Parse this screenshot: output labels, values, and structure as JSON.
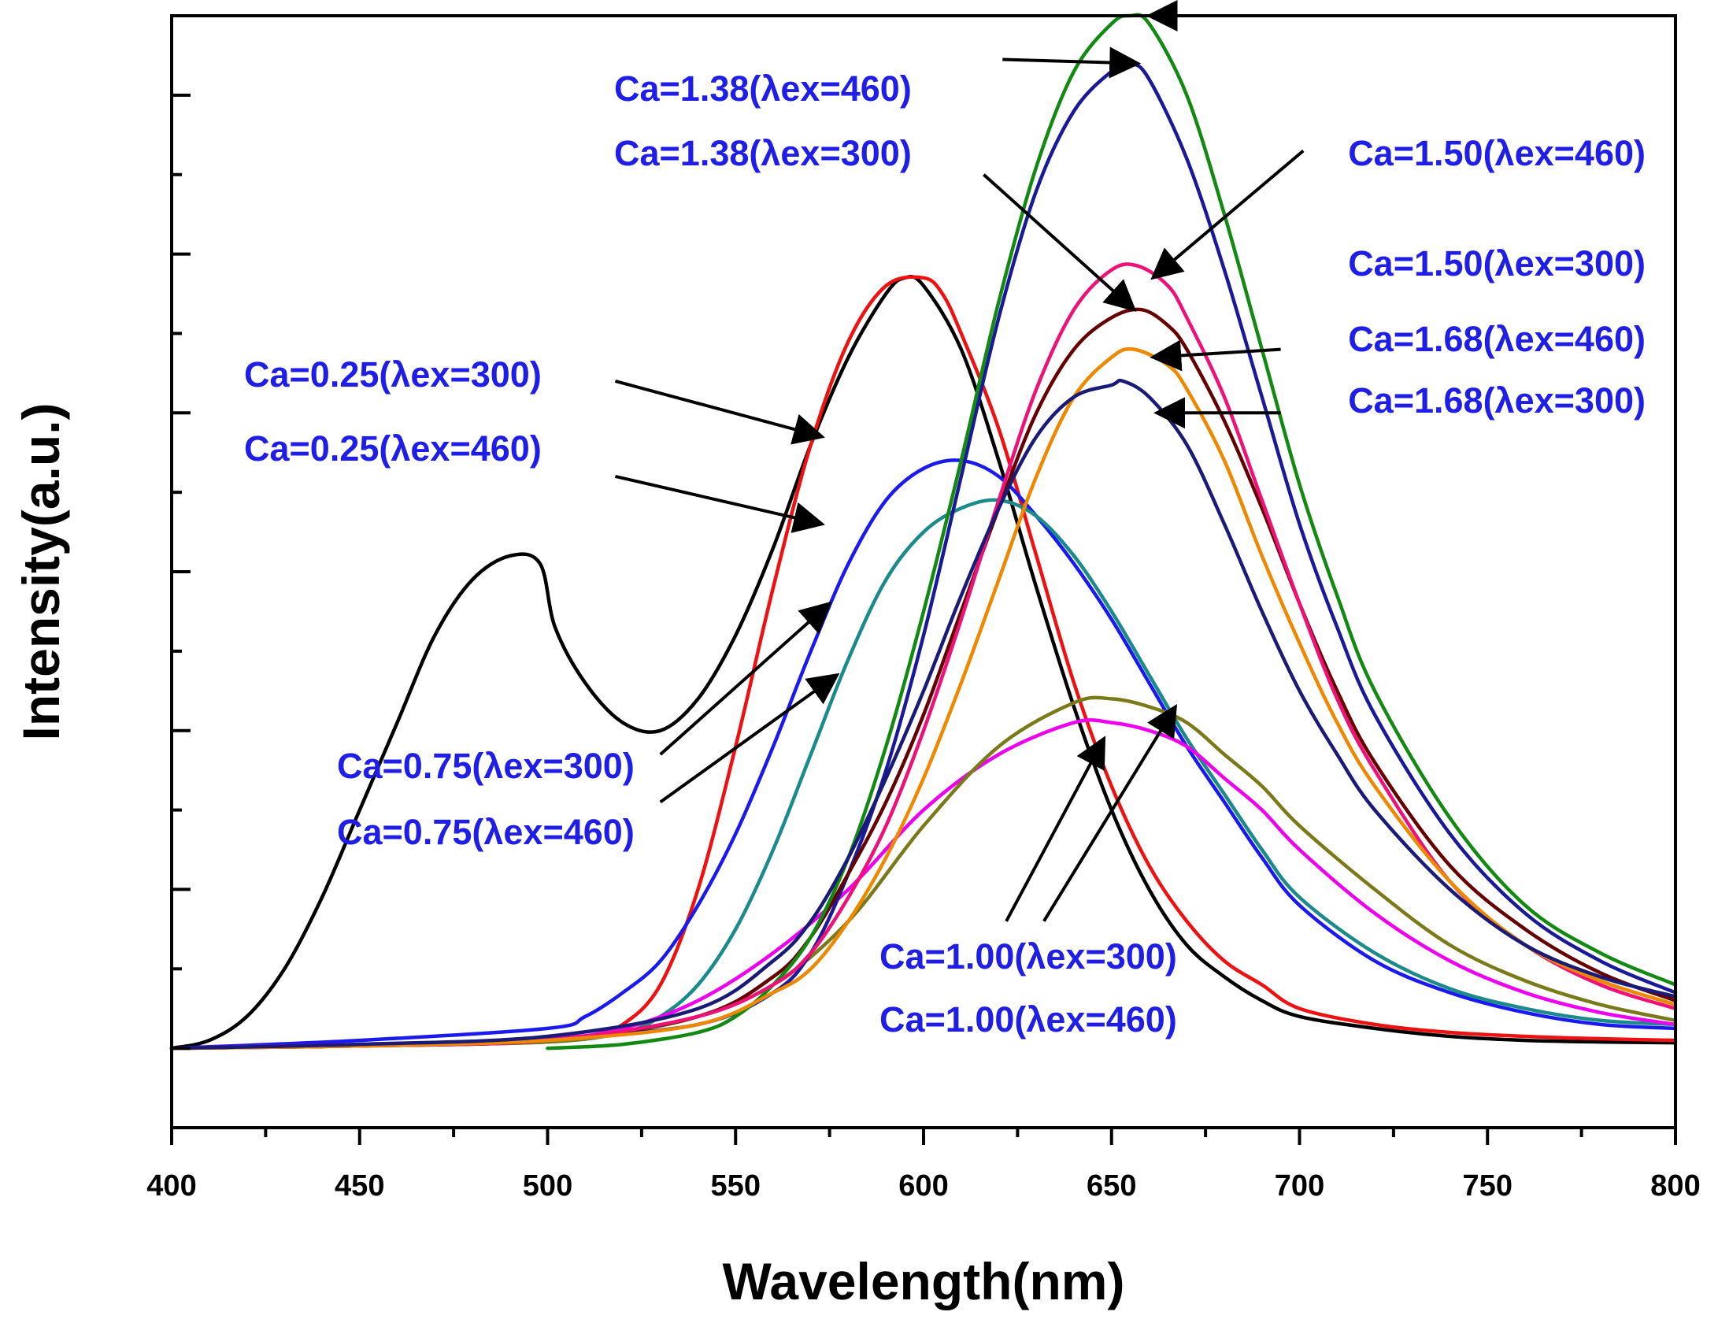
{
  "chart_data": {
    "type": "line",
    "title": "",
    "xlabel": "Wavelength(nm)",
    "ylabel": "Intensity(a.u.)",
    "xlim": [
      400,
      800
    ],
    "ylim": [
      -10,
      130
    ],
    "x_ticks": [
      "400",
      "450",
      "500",
      "550",
      "600",
      "650",
      "700",
      "750",
      "800"
    ],
    "y_tick_labels_shown": false,
    "label_color": "#1e1ee6",
    "series": [
      {
        "name": "Ca=0.25(λex=300)",
        "color": "#000000",
        "x": [
          400,
          410,
          420,
          430,
          440,
          450,
          460,
          470,
          480,
          490,
          498,
          502,
          510,
          520,
          530,
          540,
          550,
          560,
          570,
          580,
          590,
          595,
          600,
          610,
          620,
          630,
          640,
          650,
          660,
          670,
          680,
          690,
          700,
          720,
          740,
          760,
          780,
          800
        ],
        "y": [
          0,
          1,
          4,
          10,
          19,
          30,
          41,
          52,
          59,
          62,
          61,
          53,
          46,
          41,
          40,
          44,
          52,
          63,
          76,
          87,
          95,
          97,
          96,
          88,
          74,
          58,
          43,
          30,
          20,
          13,
          9,
          6,
          4,
          2.5,
          1.5,
          1,
          0.8,
          0.7
        ]
      },
      {
        "name": "Ca=0.25(λex=460)",
        "color": "#ee1111",
        "x": [
          500,
          510,
          520,
          530,
          540,
          550,
          560,
          570,
          580,
          590,
          600,
          605,
          610,
          620,
          630,
          640,
          650,
          660,
          670,
          680,
          690,
          700,
          720,
          740,
          760,
          780,
          800
        ],
        "y": [
          1,
          1.5,
          3,
          8,
          20,
          38,
          58,
          76,
          89,
          96,
          97,
          95,
          90,
          78,
          62,
          46,
          33,
          23,
          16,
          11,
          8,
          5,
          3,
          2,
          1.5,
          1.2,
          1
        ]
      },
      {
        "name": "Ca=0.75(λex=300)",
        "color": "#1a1aee",
        "x": [
          400,
          450,
          500,
          510,
          520,
          530,
          540,
          550,
          560,
          570,
          580,
          590,
          600,
          610,
          620,
          630,
          640,
          650,
          660,
          670,
          680,
          690,
          700,
          720,
          740,
          760,
          780,
          800
        ],
        "y": [
          0,
          1,
          2.5,
          4,
          7,
          11,
          18,
          27,
          38,
          50,
          61,
          69,
          73,
          74,
          72,
          67,
          61,
          54,
          46,
          38,
          31,
          24,
          18,
          11,
          7,
          4.5,
          3,
          2.5
        ]
      },
      {
        "name": "Ca=0.75(λex=460)",
        "color": "#1a8a8a",
        "x": [
          400,
          450,
          500,
          520,
          530,
          540,
          550,
          560,
          570,
          580,
          590,
          600,
          610,
          620,
          630,
          640,
          650,
          660,
          670,
          680,
          690,
          700,
          720,
          740,
          760,
          780,
          800
        ],
        "y": [
          0,
          0.3,
          0.8,
          2,
          4,
          8,
          15,
          25,
          37,
          49,
          59,
          65,
          68,
          69,
          67,
          62,
          55,
          47,
          39,
          32,
          25,
          19,
          12,
          7.5,
          5,
          3.5,
          3
        ]
      },
      {
        "name": "Ca=1.00(λex=300)",
        "color": "#ee00ee",
        "x": [
          400,
          450,
          500,
          520,
          540,
          560,
          580,
          600,
          620,
          640,
          650,
          660,
          670,
          680,
          690,
          700,
          720,
          740,
          760,
          780,
          800
        ],
        "y": [
          0,
          0.5,
          1.2,
          2.5,
          6,
          12,
          20,
          30,
          37,
          41,
          41,
          40,
          38,
          34,
          30,
          25,
          17,
          11,
          7,
          4.5,
          3
        ]
      },
      {
        "name": "Ca=1.00(λex=460)",
        "color": "#7a7a1a",
        "x": [
          400,
          450,
          500,
          520,
          540,
          560,
          580,
          600,
          620,
          640,
          650,
          660,
          670,
          680,
          690,
          700,
          720,
          740,
          760,
          780,
          800
        ],
        "y": [
          0,
          0.3,
          0.8,
          2,
          4,
          8,
          16,
          28,
          38,
          43.5,
          44,
          43,
          41,
          37,
          33,
          28,
          20,
          13,
          8.5,
          5.5,
          3.5
        ]
      },
      {
        "name": "Ca=1.38(λex=460)",
        "color": "#1a1a99",
        "x": [
          500,
          540,
          560,
          570,
          580,
          590,
          600,
          610,
          620,
          630,
          640,
          650,
          655,
          660,
          670,
          680,
          690,
          700,
          710,
          720,
          740,
          760,
          780,
          800
        ],
        "y": [
          1,
          3,
          7,
          12,
          22,
          35,
          52,
          72,
          92,
          108,
          118,
          123,
          124,
          122,
          112,
          98,
          82,
          66,
          53,
          42,
          27,
          17,
          11,
          7
        ]
      },
      {
        "name": "Ca=1.38(λex=300)",
        "color": "#660000",
        "x": [
          400,
          450,
          500,
          540,
          560,
          570,
          580,
          590,
          600,
          610,
          620,
          630,
          640,
          650,
          658,
          665,
          670,
          680,
          690,
          700,
          710,
          720,
          740,
          760,
          780,
          800
        ],
        "y": [
          0,
          0.3,
          1,
          4,
          9,
          14,
          22,
          31,
          42,
          55,
          68,
          80,
          88,
          92,
          93,
          91,
          88,
          79,
          68,
          56,
          45,
          36,
          23,
          15,
          9.5,
          6
        ]
      },
      {
        "name": "Ca=1.50(λex=460)",
        "color": "#128a12",
        "x": [
          500,
          520,
          540,
          550,
          560,
          570,
          580,
          590,
          600,
          610,
          620,
          630,
          640,
          650,
          655,
          660,
          670,
          680,
          690,
          700,
          710,
          720,
          740,
          760,
          780,
          800
        ],
        "y": [
          0,
          0.5,
          2,
          4,
          8,
          14,
          24,
          38,
          55,
          74,
          94,
          111,
          123,
          129,
          130,
          129,
          120,
          105,
          88,
          71,
          57,
          45,
          29,
          18,
          12,
          8
        ]
      },
      {
        "name": "Ca=1.50(λex=300)",
        "color": "#ee1177",
        "x": [
          400,
          450,
          500,
          540,
          560,
          570,
          580,
          590,
          600,
          610,
          620,
          630,
          640,
          650,
          657,
          665,
          670,
          680,
          690,
          700,
          710,
          720,
          740,
          760,
          780,
          800
        ],
        "y": [
          0,
          0.3,
          1,
          4,
          8,
          12,
          19,
          28,
          40,
          54,
          69,
          83,
          93,
          98,
          98.5,
          96,
          92,
          82,
          69,
          56,
          44,
          35,
          21,
          13,
          8,
          5
        ]
      },
      {
        "name": "Ca=1.68(λex=460)",
        "color": "#ee8800",
        "x": [
          400,
          450,
          500,
          540,
          560,
          570,
          580,
          590,
          600,
          610,
          620,
          630,
          640,
          650,
          656,
          665,
          670,
          680,
          690,
          700,
          710,
          720,
          740,
          760,
          780,
          800
        ],
        "y": [
          0,
          0.3,
          1,
          3,
          7,
          10,
          16,
          24,
          34,
          46,
          59,
          72,
          82,
          87,
          88,
          86,
          83,
          74,
          62,
          51,
          41,
          33,
          21,
          13,
          8.5,
          5.5
        ]
      },
      {
        "name": "Ca=1.68(λex=300)",
        "color": "#1a1a77",
        "x": [
          400,
          450,
          500,
          540,
          560,
          570,
          580,
          590,
          600,
          610,
          620,
          630,
          640,
          650,
          653,
          660,
          670,
          680,
          690,
          700,
          710,
          720,
          740,
          760,
          780,
          800
        ],
        "y": [
          0,
          0.5,
          1.5,
          5,
          11,
          16,
          24,
          34,
          45,
          57,
          68,
          77,
          82,
          83.5,
          84,
          82,
          76,
          66,
          55,
          45,
          37,
          30,
          20,
          13,
          9,
          6.5
        ]
      }
    ],
    "annotations": [
      {
        "text": "Ca=1.38(λex=460)",
        "target_series": "Ca=1.38(λex=460)",
        "arrow_from": [
          621,
          124.5
        ],
        "arrow_to": [
          657,
          124
        ]
      },
      {
        "text": "Ca=1.38(λex=300)",
        "target_series": "Ca=1.38(λex=300)",
        "arrow_from": [
          616,
          110
        ],
        "arrow_to": [
          656,
          93
        ]
      },
      {
        "text": "Ca=1.50(λex=460)",
        "target_series": "Ca=1.50(λex=460)",
        "arrow_from": [
          690,
          130
        ],
        "arrow_to": [
          660,
          130
        ]
      },
      {
        "text": "Ca=1.50(λex=300)",
        "target_series": "Ca=1.50(λex=300)",
        "arrow_from": [
          701,
          113
        ],
        "arrow_to": [
          661,
          97
        ]
      },
      {
        "text": "Ca=1.68(λex=460)",
        "target_series": "Ca=1.68(λex=460)",
        "arrow_from": [
          695,
          88
        ],
        "arrow_to": [
          661,
          87
        ]
      },
      {
        "text": "Ca=1.68(λex=300)",
        "target_series": "Ca=1.68(λex=300)",
        "arrow_from": [
          695,
          80
        ],
        "arrow_to": [
          662,
          80
        ]
      },
      {
        "text": "Ca=0.25(λex=300)",
        "target_series": "Ca=0.25(λex=300)",
        "arrow_from": [
          518,
          84
        ],
        "arrow_to": [
          573,
          77
        ]
      },
      {
        "text": "Ca=0.25(λex=460)",
        "target_series": "Ca=0.25(λex=460)",
        "arrow_from": [
          518,
          72
        ],
        "arrow_to": [
          573,
          66
        ]
      },
      {
        "text": "Ca=0.75(λex=300)",
        "target_series": "Ca=0.75(λex=300)",
        "arrow_from": [
          530,
          37
        ],
        "arrow_to": [
          575,
          56
        ]
      },
      {
        "text": "Ca=0.75(λex=460)",
        "target_series": "Ca=0.75(λex=460)",
        "arrow_from": [
          530,
          31
        ],
        "arrow_to": [
          577,
          47
        ]
      },
      {
        "text": "Ca=1.00(λex=300)",
        "target_series": "Ca=1.00(λex=300)",
        "arrow_from": [
          622,
          16
        ],
        "arrow_to": [
          648,
          39
        ]
      },
      {
        "text": "Ca=1.00(λex=460)",
        "target_series": "Ca=1.00(λex=460)",
        "arrow_from": [
          632,
          16
        ],
        "arrow_to": [
          667,
          43
        ]
      }
    ]
  }
}
